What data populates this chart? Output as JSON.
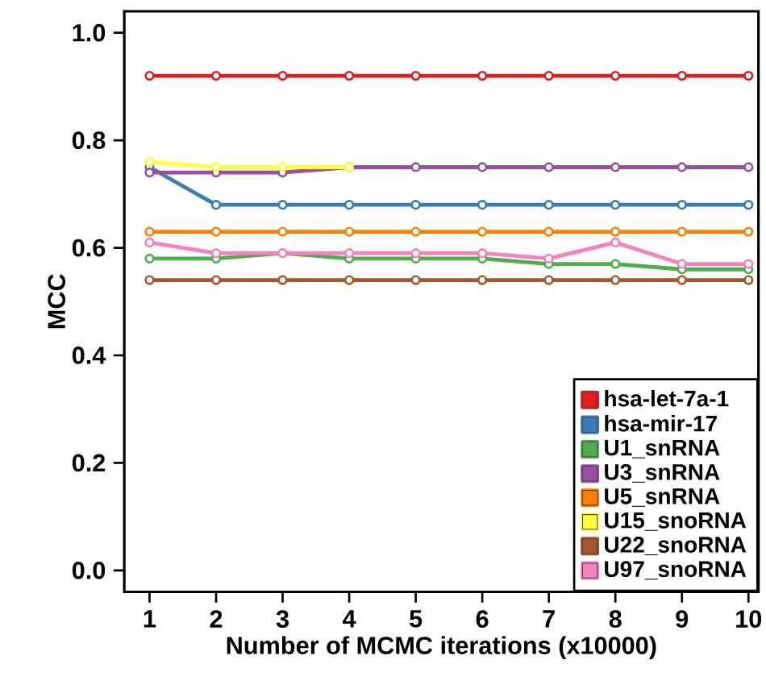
{
  "chart_data": {
    "type": "line",
    "xlabel": "Number of MCMC iterations (x10000)",
    "ylabel": "MCC",
    "x": [
      1,
      2,
      3,
      4,
      5,
      6,
      7,
      8,
      9,
      10
    ],
    "xlim": [
      0.62,
      10.15
    ],
    "ylim": [
      -0.04,
      1.04
    ],
    "xticks": [
      1,
      2,
      3,
      4,
      5,
      6,
      7,
      8,
      9,
      10
    ],
    "yticks": [
      {
        "value": 0,
        "label": "0.0"
      },
      0.2,
      0.4,
      0.6,
      0.8,
      {
        "value": 1,
        "label": "1.0"
      }
    ],
    "marker": "circle",
    "legend": "bottom right",
    "grid": false,
    "series": [
      {
        "name": "hsa-let-7a-1",
        "color": "#e41a1c",
        "values": [
          0.92,
          0.92,
          0.92,
          0.92,
          0.92,
          0.92,
          0.92,
          0.92,
          0.92,
          0.92
        ]
      },
      {
        "name": "hsa-mir-17",
        "color": "#377eb8",
        "values": [
          0.75,
          0.68,
          0.68,
          0.68,
          0.68,
          0.68,
          0.68,
          0.68,
          0.68,
          0.68
        ]
      },
      {
        "name": "U1_snRNA",
        "color": "#4daf4a",
        "values": [
          0.58,
          0.58,
          0.59,
          0.58,
          0.58,
          0.58,
          0.57,
          0.57,
          0.56,
          0.56
        ]
      },
      {
        "name": "U3_snRNA",
        "color": "#984ea3",
        "values": [
          0.74,
          0.74,
          0.74,
          0.75,
          0.75,
          0.75,
          0.75,
          0.75,
          0.75,
          0.75
        ]
      },
      {
        "name": "U5_snRNA",
        "color": "#ff7f00",
        "values": [
          0.63,
          0.63,
          0.63,
          0.63,
          0.63,
          0.63,
          0.63,
          0.63,
          0.63,
          0.63
        ]
      },
      {
        "name": "U15_snoRNA",
        "color": "#ffff33",
        "values": [
          0.76,
          0.75,
          0.75,
          0.75,
          null,
          null,
          null,
          null,
          null,
          null
        ]
      },
      {
        "name": "U22_snoRNA",
        "color": "#a65628",
        "values": [
          0.54,
          0.54,
          0.54,
          0.54,
          0.54,
          0.54,
          0.54,
          0.54,
          0.54,
          0.54
        ]
      },
      {
        "name": "U97_snoRNA",
        "color": "#f781bf",
        "values": [
          0.61,
          0.59,
          0.59,
          0.59,
          0.59,
          0.59,
          0.58,
          0.61,
          0.57,
          0.57
        ]
      }
    ]
  }
}
